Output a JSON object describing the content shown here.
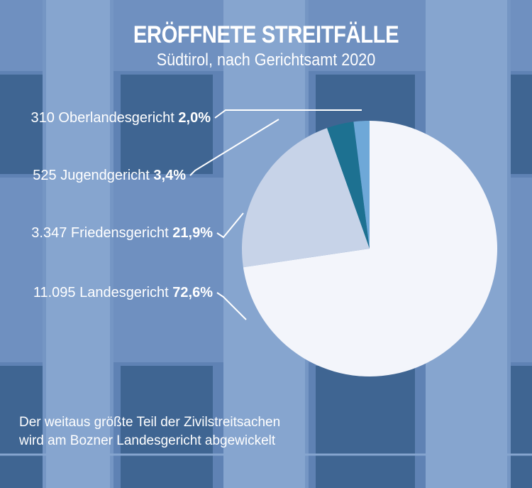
{
  "title": "ERÖFFNETE STREITFÄLLE",
  "subtitle": "Südtirol, nach Gerichtsamt 2020",
  "footnote": {
    "line1": "Der weitaus größte Teil der Zivilstreitsachen",
    "line2": "wird am Bozner Landesgericht abgewickelt"
  },
  "colors": {
    "background": "#6f90c0",
    "pillar": "#86a5cf",
    "window": "#3f6592"
  },
  "chart_data": {
    "type": "pie",
    "title": "ERÖFFNETE STREITFÄLLE",
    "subtitle": "Südtirol, nach Gerichtsamt 2020",
    "start": "12 o'clock, clockwise",
    "slices": [
      {
        "count": "11.095",
        "name": "Landesgericht",
        "pct_label": "72,6%",
        "value": 72.6,
        "color": "#f3f5fb"
      },
      {
        "count": "3.347",
        "name": "Friedensgericht",
        "pct_label": "21,9%",
        "value": 21.9,
        "color": "#c7d3e8"
      },
      {
        "count": "525",
        "name": "Jugendgericht",
        "pct_label": "3,4%",
        "value": 3.4,
        "color": "#1d7191"
      },
      {
        "count": "310",
        "name": "Oberlandesgericht",
        "pct_label": "2,0%",
        "value": 2.0,
        "color": "#6ea8d8"
      }
    ]
  }
}
